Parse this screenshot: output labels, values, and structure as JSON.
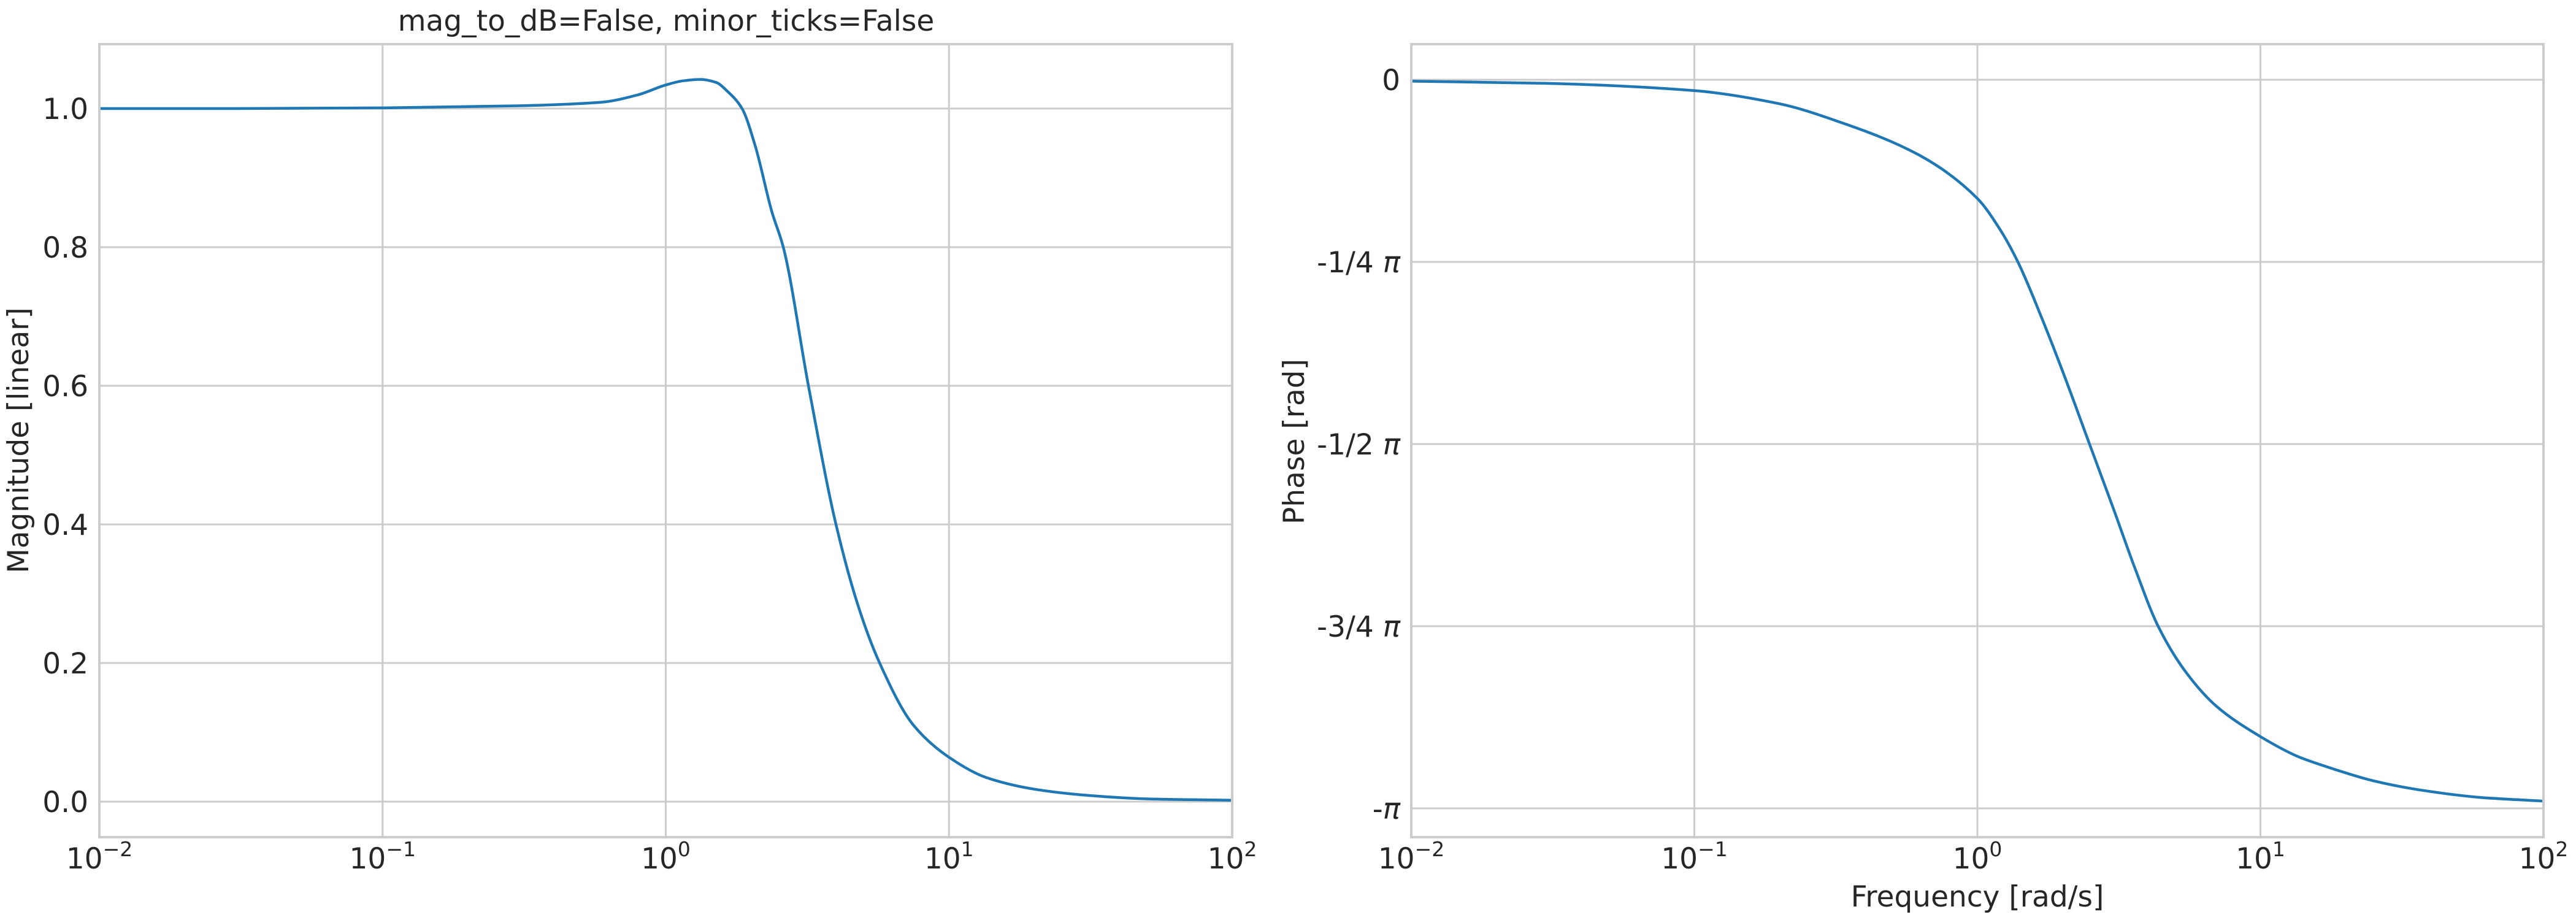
{
  "figure": {
    "title": "mag_to_dB=False, minor_ticks=False",
    "background": "#ffffff",
    "text_color": "#262626",
    "grid_color": "#cccccc",
    "line_color": "#1f77b4"
  },
  "chart_data": [
    {
      "type": "line",
      "title": "mag_to_dB=False, minor_ticks=False",
      "xlabel": "",
      "ylabel": "Magnitude [linear]",
      "xscale": "log",
      "xlim": [
        0.01,
        100
      ],
      "ylim": [
        -0.051,
        1.093
      ],
      "grid": true,
      "xticks": [
        0.01,
        0.1,
        1,
        10,
        100
      ],
      "xtick_labels": [
        {
          "base": "10",
          "exp": "−2"
        },
        {
          "base": "10",
          "exp": "−1"
        },
        {
          "base": "10",
          "exp": "0"
        },
        {
          "base": "10",
          "exp": "1"
        },
        {
          "base": "10",
          "exp": "2"
        }
      ],
      "yticks": [
        0.0,
        0.2,
        0.4,
        0.6,
        0.8,
        1.0
      ],
      "ytick_labels": [
        "0.0",
        "0.2",
        "0.4",
        "0.6",
        "0.8",
        "1.0"
      ],
      "series": [
        {
          "name": "magnitude",
          "x": [
            0.01,
            0.03,
            0.1,
            0.3,
            0.59,
            0.8,
            1.0,
            1.15,
            1.32,
            1.5,
            1.65,
            1.86,
            2.07,
            2.37,
            2.6,
            3.19,
            3.99,
            4.8,
            5.69,
            7.5,
            10,
            13.5,
            20,
            29,
            50,
            100
          ],
          "y": [
            1.0,
            1.0,
            1.001,
            1.004,
            1.009,
            1.02,
            1.034,
            1.04,
            1.042,
            1.038,
            1.025,
            1.0,
            0.946,
            0.851,
            0.8,
            0.6,
            0.4,
            0.28,
            0.2,
            0.11,
            0.064,
            0.035,
            0.018,
            0.01,
            0.004,
            0.002
          ]
        }
      ]
    },
    {
      "type": "line",
      "title": "",
      "xlabel": "Frequency [rad/s]",
      "ylabel": "Phase [rad]",
      "xscale": "log",
      "xlim": [
        0.01,
        100
      ],
      "ylim_pi": [
        -1.04,
        0.049
      ],
      "grid": true,
      "xticks": [
        0.01,
        0.1,
        1,
        10,
        100
      ],
      "xtick_labels": [
        {
          "base": "10",
          "exp": "−2"
        },
        {
          "base": "10",
          "exp": "−1"
        },
        {
          "base": "10",
          "exp": "0"
        },
        {
          "base": "10",
          "exp": "1"
        },
        {
          "base": "10",
          "exp": "2"
        }
      ],
      "yticks_pi": [
        0,
        -0.25,
        -0.5,
        -0.75,
        -1.0
      ],
      "ytick_labels": [
        "0",
        "-1/4 π",
        "-1/2 π",
        "-3/4 π",
        "-π"
      ],
      "series": [
        {
          "name": "phase",
          "units": "pi radians",
          "x": [
            0.01,
            0.03,
            0.1,
            0.2,
            0.326,
            0.62,
            1.0,
            1.2,
            1.39,
            1.7,
            2.0,
            2.49,
            3.0,
            3.6,
            4.35,
            5.5,
            7.0,
            10,
            13.6,
            17.5,
            25,
            37,
            60,
            100
          ],
          "y": [
            -0.002,
            -0.005,
            -0.015,
            -0.033,
            -0.058,
            -0.103,
            -0.163,
            -0.205,
            -0.25,
            -0.33,
            -0.4,
            -0.5,
            -0.585,
            -0.67,
            -0.75,
            -0.815,
            -0.86,
            -0.9015,
            -0.929,
            -0.944,
            -0.962,
            -0.975,
            -0.985,
            -0.99
          ]
        }
      ]
    }
  ]
}
